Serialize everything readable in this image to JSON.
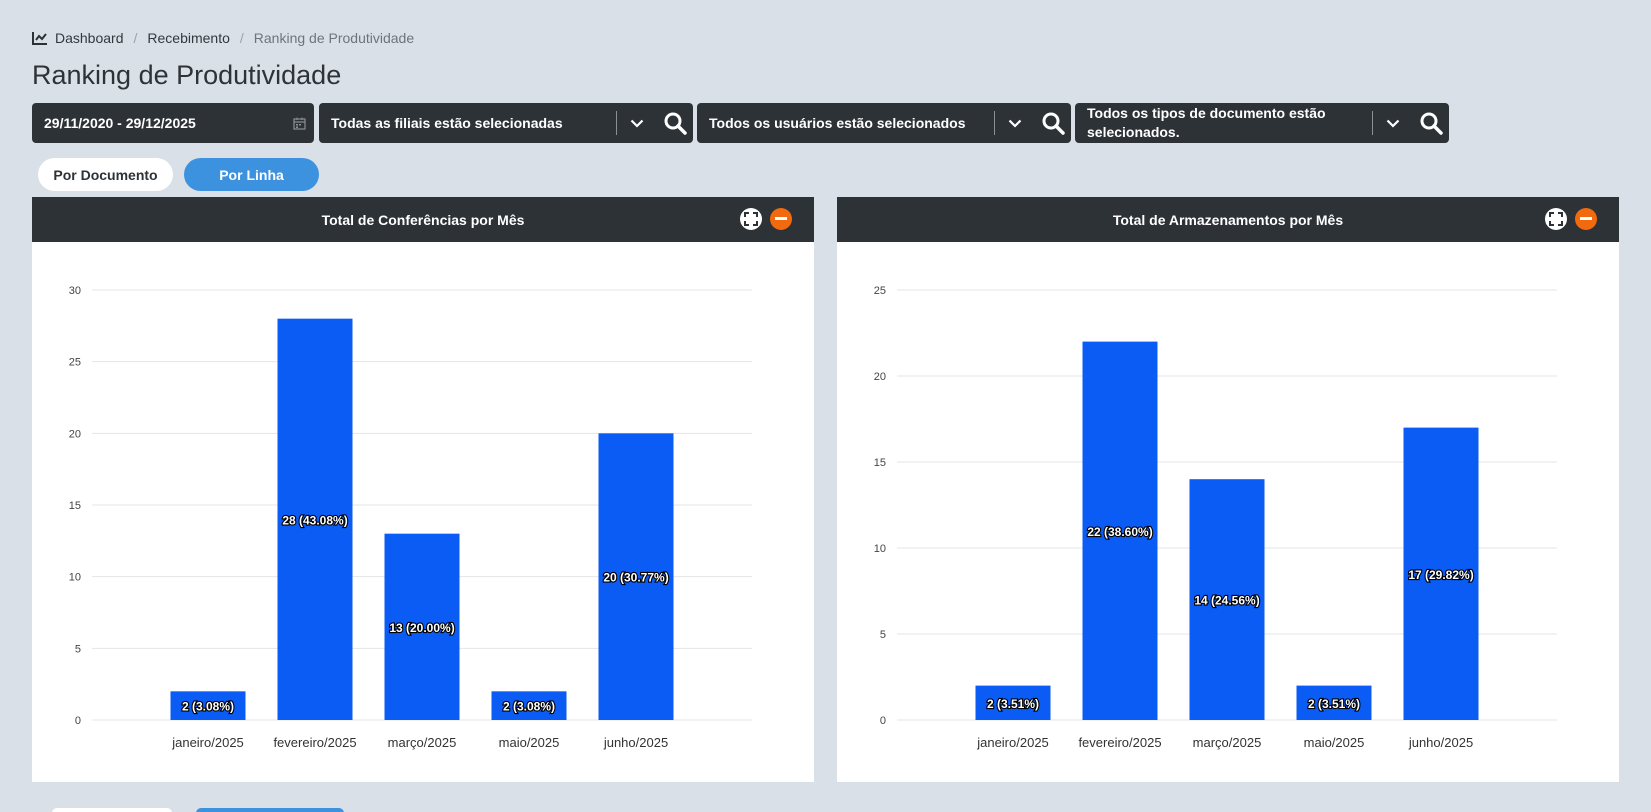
{
  "breadcrumb": {
    "items": [
      "Dashboard",
      "Recebimento"
    ],
    "current": "Ranking de Produtividade"
  },
  "page": {
    "title": "Ranking de Produtividade"
  },
  "filters": {
    "date_range": "29/11/2020 - 29/12/2025",
    "branches": "Todas as filiais estão selecionadas",
    "users": "Todos os usuários estão selecionados",
    "doc_types": "Todos os tipos de documento estão selecionados."
  },
  "view_toggle": {
    "by_document": "Por Documento",
    "by_line": "Por Linha",
    "active": "by_line"
  },
  "colors": {
    "bar": "#0a5cf5",
    "header": "#2d3237",
    "accent": "#3d92e0",
    "collapse": "#f26a0d"
  },
  "chart_data": [
    {
      "type": "bar",
      "title": "Total de Conferências por Mês",
      "categories": [
        "janeiro/2025",
        "fevereiro/2025",
        "março/2025",
        "maio/2025",
        "junho/2025"
      ],
      "values": [
        2,
        28,
        13,
        2,
        20
      ],
      "labels": [
        "2 (3.08%)",
        "28 (43.08%)",
        "13 (20.00%)",
        "2 (3.08%)",
        "20 (30.77%)"
      ],
      "ylim": [
        0,
        30
      ],
      "yticks": [
        0,
        5,
        10,
        15,
        20,
        25,
        30
      ],
      "grid": true
    },
    {
      "type": "bar",
      "title": "Total de Armazenamentos por Mês",
      "categories": [
        "janeiro/2025",
        "fevereiro/2025",
        "março/2025",
        "maio/2025",
        "junho/2025"
      ],
      "values": [
        2,
        22,
        14,
        2,
        17
      ],
      "labels": [
        "2 (3.51%)",
        "22 (38.60%)",
        "14 (24.56%)",
        "2 (3.51%)",
        "17 (29.82%)"
      ],
      "ylim": [
        0,
        25
      ],
      "yticks": [
        0,
        5,
        10,
        15,
        20,
        25
      ],
      "grid": true
    }
  ]
}
